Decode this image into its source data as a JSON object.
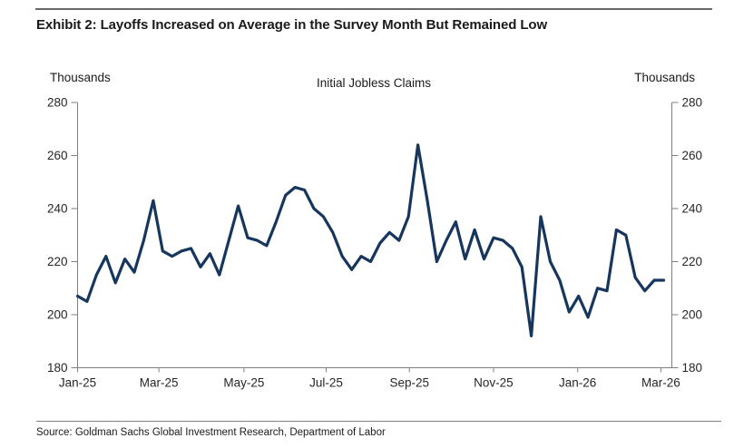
{
  "header": {
    "title": "Exhibit 2: Layoffs Increased on Average in the Survey Month But Remained Low"
  },
  "footer": {
    "source": "Source: Goldman Sachs Global Investment Research, Department of Labor"
  },
  "chart_data": {
    "type": "line",
    "title": "Initial Jobless Claims",
    "left_axis_header": "Thousands",
    "right_axis_header": "Thousands",
    "ylabel": "Thousands",
    "ylim": [
      180,
      280
    ],
    "yticks": [
      180,
      200,
      220,
      240,
      260,
      280
    ],
    "grid": false,
    "legend": "none",
    "x_unit": "week",
    "x_tick_labels": [
      "Jan-25",
      "Mar-25",
      "May-25",
      "Jul-25",
      "Sep-25",
      "Nov-25",
      "Jan-26",
      "Mar-26"
    ],
    "x_tick_week_positions": [
      0,
      8.6,
      17.6,
      26.3,
      35.1,
      44.0,
      52.9,
      61.7
    ],
    "line_color": "#17365d",
    "axis_color": "#7f7f7f",
    "tick_text_color": "#262626",
    "series": [
      {
        "name": "Initial Jobless Claims",
        "values": [
          207,
          205,
          215,
          222,
          212,
          221,
          216,
          228,
          243,
          224,
          222,
          224,
          225,
          218,
          223,
          215,
          228,
          241,
          229,
          228,
          226,
          235,
          245,
          248,
          247,
          240,
          237,
          231,
          222,
          217,
          222,
          220,
          227,
          231,
          228,
          237,
          264,
          243,
          220,
          228,
          235,
          221,
          232,
          221,
          229,
          228,
          225,
          218,
          192,
          237,
          220,
          213,
          201,
          207,
          199,
          210,
          209,
          232,
          230,
          214,
          209,
          213,
          213
        ]
      }
    ]
  }
}
